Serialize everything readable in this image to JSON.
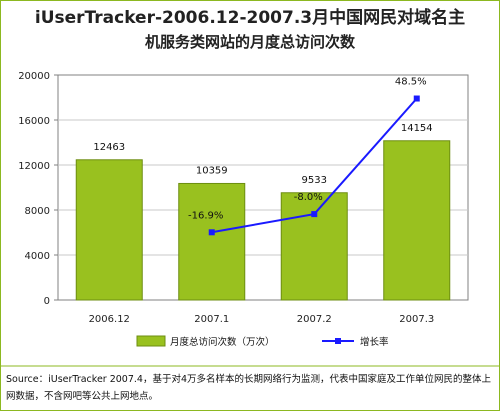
{
  "title": {
    "line1": "iUserTracker-2006.12-2007.3月中国网民对域名主",
    "line2": "机服务类网站的月度总访问次数"
  },
  "colors": {
    "bar": "#99c11f",
    "bar_border": "#6d8e10",
    "line": "#1a1aff",
    "frame": "#8cb820"
  },
  "chart_data": {
    "type": "bar",
    "categories": [
      "2006.12",
      "2007.1",
      "2007.2",
      "2007.3"
    ],
    "series": [
      {
        "name": "月度总访问次数（万次）",
        "type": "bar",
        "values": [
          12463,
          10359,
          9533,
          14154
        ],
        "labels": [
          "12463",
          "10359",
          "9533",
          "14154"
        ]
      },
      {
        "name": "增长率",
        "type": "line",
        "values": [
          null,
          -16.9,
          -8.0,
          48.5
        ],
        "labels": [
          "",
          "-16.9%",
          "-8.0%",
          "48.5%"
        ]
      }
    ],
    "yticks": [
      "0",
      "4000",
      "8000",
      "12000",
      "16000",
      "20000"
    ],
    "ylim": [
      0,
      20000
    ],
    "growth_ylim": [
      -50,
      60
    ],
    "legend": {
      "position": "bottom"
    },
    "grid": true
  },
  "source": "Source：iUserTracker 2007.4，基于对4万多名样本的长期网络行为监测，代表中国家庭及工作单位网民的整体上网数据，不含网吧等公共上网地点。"
}
